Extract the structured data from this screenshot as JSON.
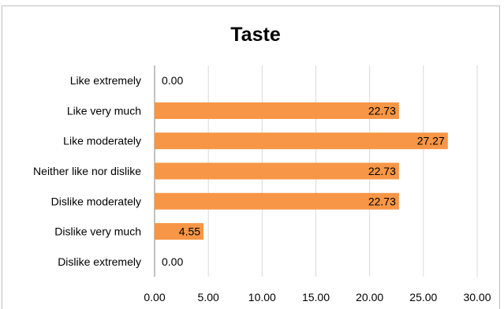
{
  "chart_data": {
    "type": "bar",
    "orientation": "horizontal",
    "title": "Taste",
    "categories": [
      "Like extremely",
      "Like very much",
      "Like moderately",
      "Neither like nor dislike",
      "Dislike moderately",
      "Dislike very much",
      "Dislike extremely"
    ],
    "values": [
      0.0,
      22.73,
      27.27,
      22.73,
      22.73,
      4.55,
      0.0
    ],
    "value_labels": [
      "0.00",
      "22.73",
      "27.27",
      "22.73",
      "22.73",
      "4.55",
      "0.00"
    ],
    "xlim": [
      0,
      30
    ],
    "x_ticks": [
      "0.00",
      "5.00",
      "10.00",
      "15.00",
      "20.00",
      "25.00",
      "30.00"
    ],
    "grid": "vertical",
    "legend": "none",
    "bar_color": "#f79646",
    "xlabel": "",
    "ylabel": ""
  }
}
